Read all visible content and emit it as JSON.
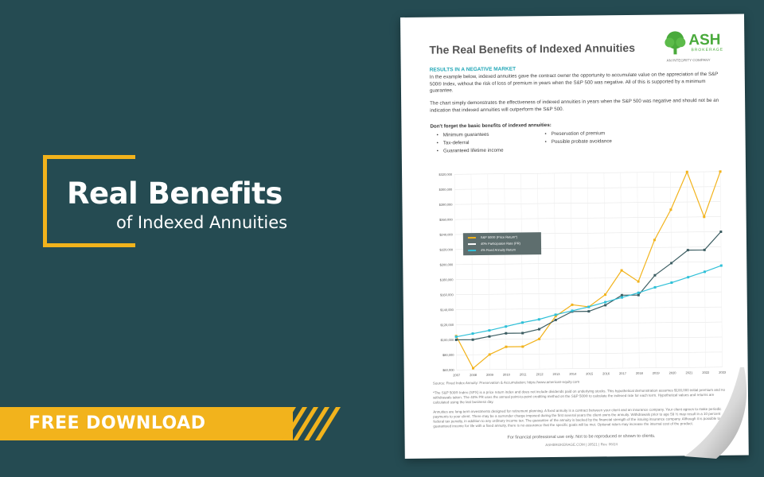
{
  "hero": {
    "title": "Real Benefits",
    "subtitle": "of Indexed Annuities"
  },
  "banner": {
    "label": "FREE DOWNLOAD"
  },
  "document": {
    "title": "The Real Benefits of Indexed Annuities",
    "logo": {
      "name": "ASH",
      "sub": "BROKERAGE",
      "tagline": "AN INTEGRITY COMPANY"
    },
    "section_heading": "RESULTS IN A NEGATIVE MARKET",
    "paragraph1": "In the example below, indexed annuities gave the contract owner the opportunity to accumulate value on the appreciation of the S&P 500® Index, without the risk of loss of premium in years when the S&P 500 was negative. All of this is supported by a minimum guarantee.",
    "paragraph2": "The chart simply demonstrates the effectiveness of indexed annuities in years when the S&P 500 was negative and should not be an indication that indexed annuities will outperform the S&P 500.",
    "list_heading": "Don't forget the basic benefits of indexed annuities:",
    "benefits_left": [
      "Minimum guarantees",
      "Tax-deferral",
      "Guaranteed lifetime income"
    ],
    "benefits_right": [
      "Preservation of premium",
      "Possible probate avoidance"
    ],
    "source": "Source: Fixed Index Annuity: Preservation & Accumulation; https://www.american-equity.com",
    "footnote1": "*The S&P 500® Index (SPX) is a price return index and does not include dividends paid on underlying stocks. This hypothetical demonstration assumes $100,000 initial premium and no withdrawals taken. The 40% PR uses the annual point-to-point crediting method on the S&P 500® to calculate the indexed rate for each term. Hypothetical values and returns are calculated using the last business day.",
    "footnote2": "Annuities are long-term investments designed for retirement planning. A fixed annuity is a contract between your client and an insurance company. Your client agrees to make periodic payments to your client. There may be a surrender charge imposed during the first several years the client owns the annuity. Withdrawals prior to age 59 ½ may result in a 10 percent federal tax penalty, in addition to any ordinary income tax. The guarantee of the annuity is backed by the financial strength of the issuing insurance company. Although it is possible to have guaranteed income for life with a fixed annuity, there is no assurance that the specific goals will be met. Optional riders may increase the internal cost of the product.",
    "disclaimer": "For financial professional use only. Not to be reproduced or shown to clients.",
    "footer": "ASHBROKERAGE.COM | 30521 | Rev. 06/24"
  },
  "chart_data": {
    "type": "line",
    "x": [
      "2007",
      "2008",
      "2009",
      "2010",
      "2011",
      "2012",
      "2013",
      "2014",
      "2015",
      "2016",
      "2017",
      "2018",
      "2019",
      "2020",
      "2021",
      "2022",
      "2023"
    ],
    "ylim": [
      60000,
      320000
    ],
    "y_ticks": [
      "$320,000",
      "$300,000",
      "$280,000",
      "$260,000",
      "$240,000",
      "$220,000",
      "$200,000",
      "$180,000",
      "$160,000",
      "$140,000",
      "$120,000",
      "$100,000",
      "$80,000",
      "$60,000"
    ],
    "series": [
      {
        "name": "S&P 500® (Price Return*)",
        "color": "#f2b31c",
        "values": [
          105000,
          62000,
          80000,
          90000,
          90000,
          100000,
          130000,
          145000,
          142000,
          158000,
          190000,
          175000,
          230000,
          270000,
          320000,
          260000,
          320000
        ]
      },
      {
        "name": "40% Participation Rate (PR)",
        "color": "#3c5d62",
        "values": [
          100000,
          100000,
          104000,
          108000,
          108000,
          113000,
          125000,
          136000,
          136000,
          144000,
          157000,
          157000,
          183000,
          199000,
          216000,
          216000,
          240000
        ]
      },
      {
        "name": "4% Fixed Annuity Return",
        "color": "#2fc0d8",
        "values": [
          104000,
          108000,
          112000,
          117000,
          122000,
          126000,
          132000,
          137000,
          142000,
          148000,
          154000,
          160000,
          167000,
          173000,
          180000,
          187000,
          195000
        ]
      }
    ],
    "legend_position": "upper-left"
  }
}
